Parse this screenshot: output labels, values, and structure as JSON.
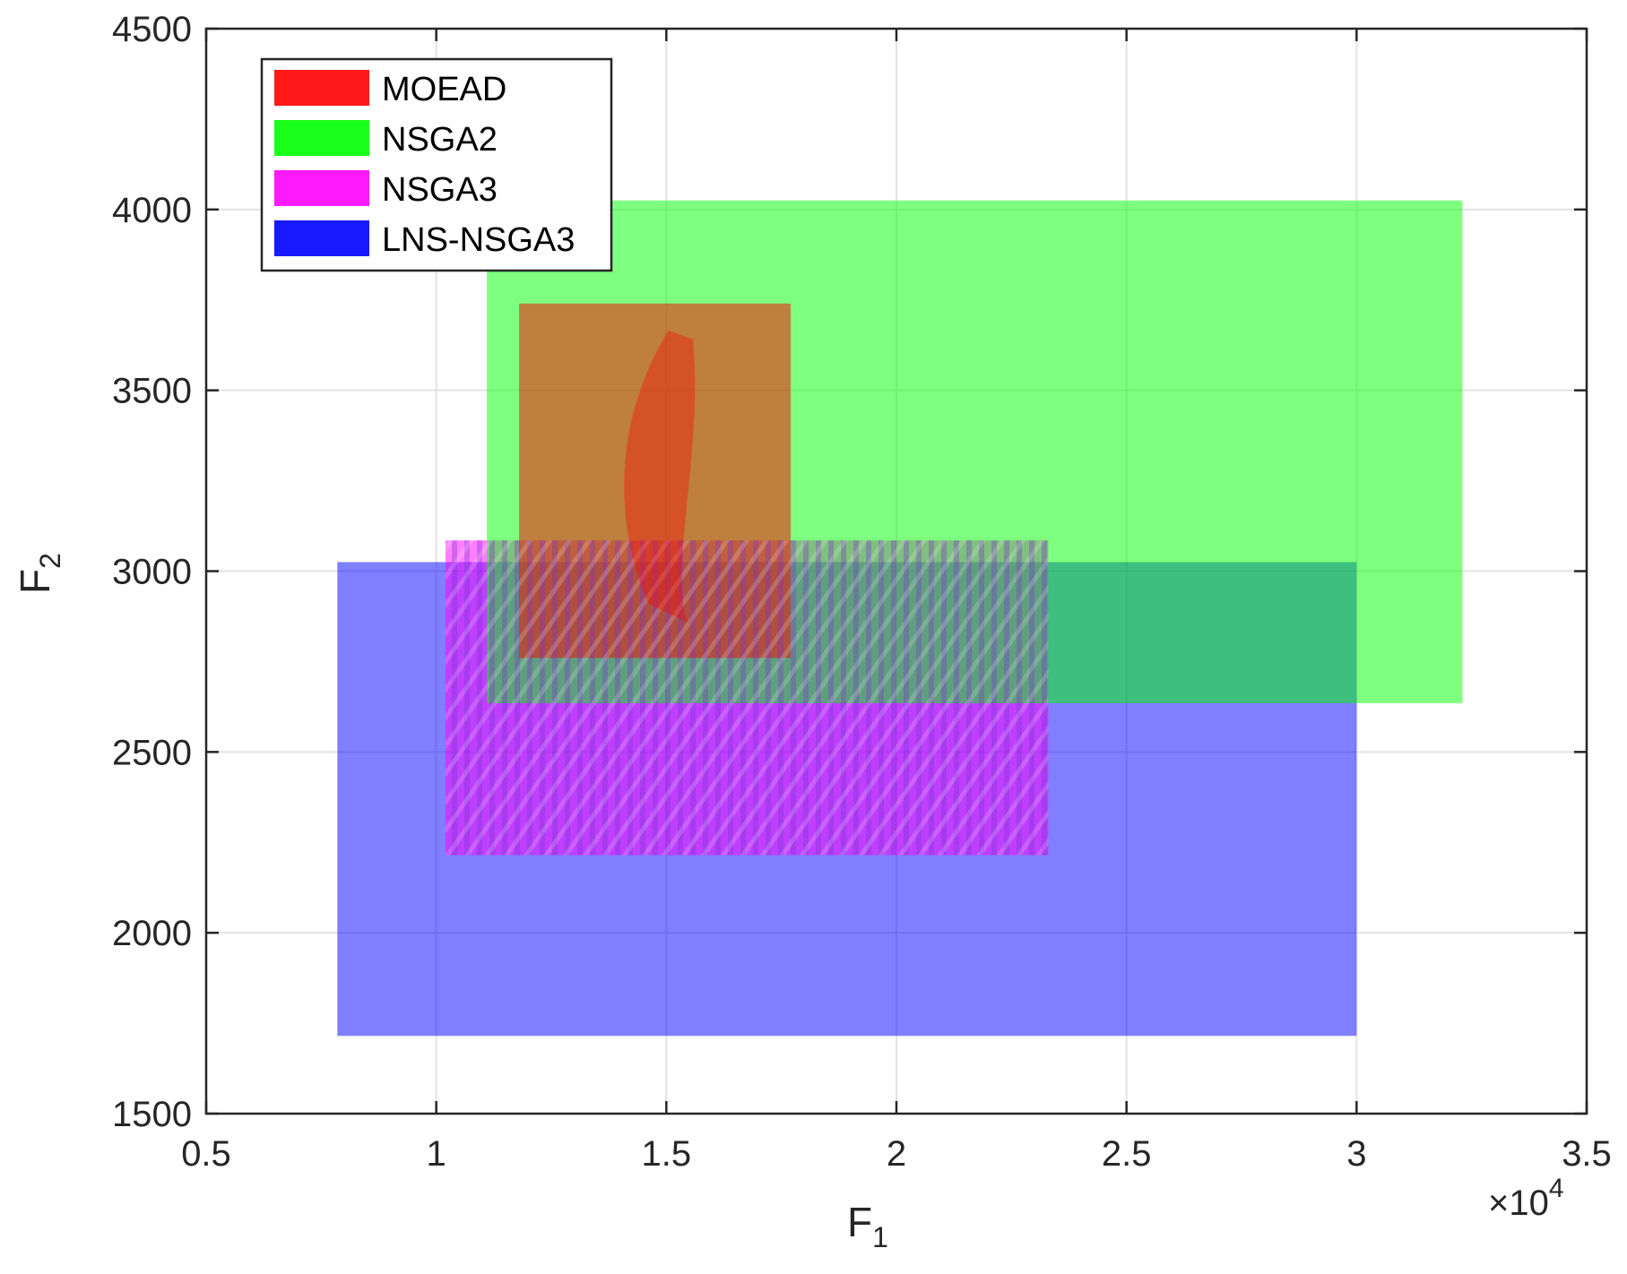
{
  "chart_data": {
    "type": "area",
    "xlabel": "F",
    "xlabel_sub": "1",
    "ylabel": "F",
    "ylabel_sub": "2",
    "x_multiplier": {
      "prefix": "×10",
      "exponent": "4"
    },
    "xlim": [
      0.5,
      3.5
    ],
    "ylim": [
      1500,
      4500
    ],
    "x_ticks": [
      0.5,
      1,
      1.5,
      2,
      2.5,
      3,
      3.5
    ],
    "x_tick_labels": [
      "0.5",
      "1",
      "1.5",
      "2",
      "2.5",
      "3",
      "3.5"
    ],
    "y_ticks": [
      1500,
      2000,
      2500,
      3000,
      3500,
      4000,
      4500
    ],
    "y_tick_labels": [
      "1500",
      "2000",
      "2500",
      "3000",
      "3500",
      "4000",
      "4500"
    ],
    "grid": true,
    "legend_position": "top-left",
    "series": [
      {
        "name": "MOEAD",
        "color": "#ff0000",
        "region": {
          "x": [
            1.18,
            1.77
          ],
          "y": [
            2760,
            3740
          ]
        }
      },
      {
        "name": "NSGA2",
        "color": "#00ff00",
        "region": {
          "x": [
            1.11,
            3.23
          ],
          "y": [
            2635,
            4025
          ]
        }
      },
      {
        "name": "NSGA3",
        "color": "#ff00ff",
        "region": {
          "x": [
            1.02,
            2.33
          ],
          "y": [
            2215,
            3085
          ]
        }
      },
      {
        "name": "LNS-NSGA3",
        "color": "#0000ff",
        "region": {
          "x": [
            0.785,
            3.0
          ],
          "y": [
            1715,
            3025
          ]
        }
      }
    ]
  }
}
